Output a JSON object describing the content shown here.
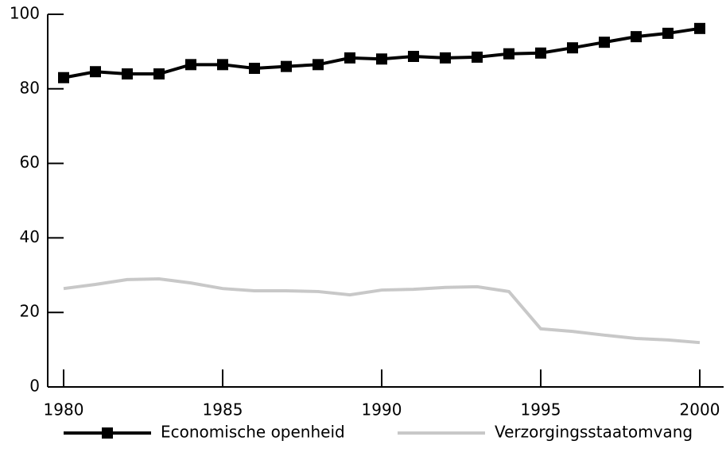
{
  "chart_data": {
    "type": "line",
    "x": [
      1980,
      1981,
      1982,
      1983,
      1984,
      1985,
      1986,
      1987,
      1988,
      1989,
      1990,
      1991,
      1992,
      1993,
      1994,
      1995,
      1996,
      1997,
      1998,
      1999,
      2000
    ],
    "series": [
      {
        "name": "Economische openheid",
        "color": "#000000",
        "marker": "square",
        "values": [
          83,
          84.6,
          84,
          84,
          86.5,
          86.5,
          85.5,
          86,
          86.5,
          88.3,
          88,
          88.7,
          88.3,
          88.5,
          89.4,
          89.6,
          91,
          92.5,
          94,
          94.9,
          96.2
        ]
      },
      {
        "name": "Verzorgingsstaatomvang",
        "color": "#c8c8c8",
        "values": [
          26.4,
          27.5,
          28.8,
          29,
          27.9,
          26.4,
          25.8,
          25.8,
          25.6,
          24.7,
          26,
          26.2,
          26.7,
          26.9,
          25.6,
          15.6,
          14.9,
          13.9,
          13,
          12.6,
          11.9
        ]
      }
    ],
    "xlim": [
      1979.5,
      2000.5
    ],
    "xticks": [
      1980,
      1985,
      1990,
      1995,
      2000
    ],
    "ylim": [
      0,
      100
    ],
    "yticks": [
      0,
      20,
      40,
      60,
      80,
      100
    ],
    "grid": false,
    "legend": "bottom"
  }
}
